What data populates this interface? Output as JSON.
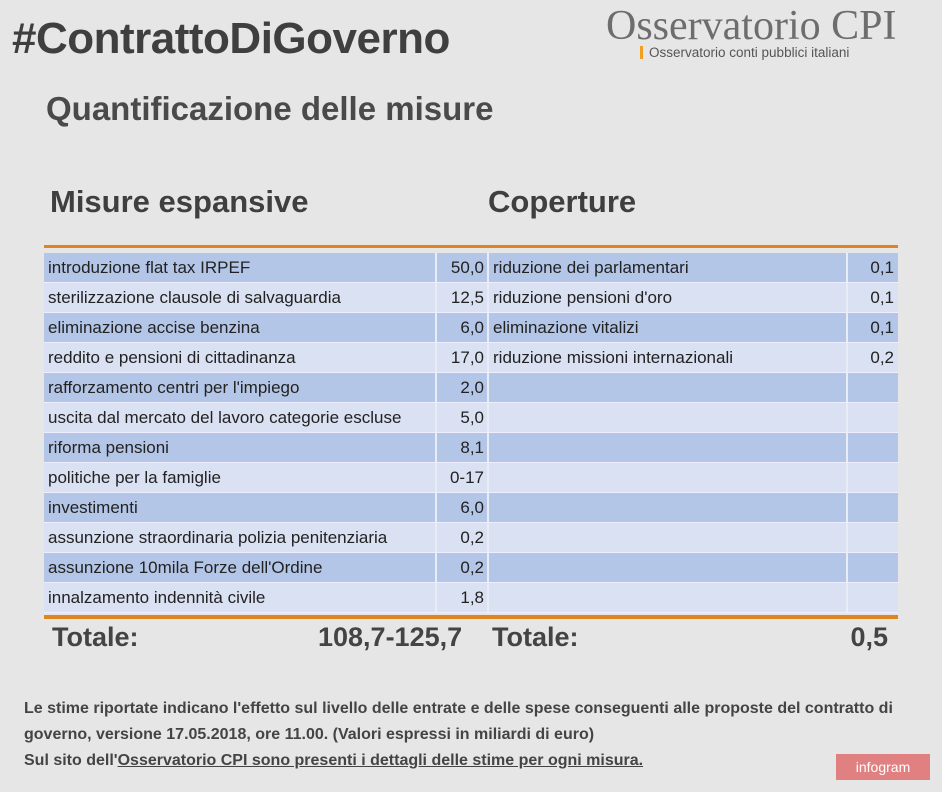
{
  "title": "#ContrattoDiGoverno",
  "subtitle": "Quantificazione delle misure",
  "logo": {
    "name": "Osservatorio CPI",
    "tagline": "Osservatorio conti pubblici italiani",
    "accent": "#f0a020"
  },
  "headers": {
    "left": "Misure espansive",
    "right": "Coperture"
  },
  "rows": [
    {
      "misura": "introduzione flat tax IRPEF",
      "valore": "50,0",
      "copertura": "riduzione dei parlamentari",
      "cvalore": "0,1"
    },
    {
      "misura": "sterilizzazione clausole di salvaguardia",
      "valore": "12,5",
      "copertura": "riduzione pensioni d'oro",
      "cvalore": "0,1"
    },
    {
      "misura": "eliminazione accise benzina",
      "valore": "6,0",
      "copertura": "eliminazione vitalizi",
      "cvalore": "0,1"
    },
    {
      "misura": "reddito e pensioni di cittadinanza",
      "valore": "17,0",
      "copertura": "riduzione missioni internazionali",
      "cvalore": "0,2"
    },
    {
      "misura": "rafforzamento centri per l'impiego",
      "valore": "2,0",
      "copertura": "",
      "cvalore": ""
    },
    {
      "misura": "uscita dal mercato del lavoro categorie escluse",
      "valore": "5,0",
      "copertura": "",
      "cvalore": ""
    },
    {
      "misura": "riforma pensioni",
      "valore": "8,1",
      "copertura": "",
      "cvalore": ""
    },
    {
      "misura": "politiche per la famiglie",
      "valore": "0-17",
      "copertura": "",
      "cvalore": ""
    },
    {
      "misura": "investimenti",
      "valore": "6,0",
      "copertura": "",
      "cvalore": ""
    },
    {
      "misura": "assunzione straordinaria polizia penitenziaria",
      "valore": "0,2",
      "copertura": "",
      "cvalore": ""
    },
    {
      "misura": "assunzione 10mila Forze dell'Ordine",
      "valore": "0,2",
      "copertura": "",
      "cvalore": ""
    },
    {
      "misura": "innalzamento indennità civile",
      "valore": "1,8",
      "copertura": "",
      "cvalore": ""
    }
  ],
  "totals": {
    "left_label": "Totale:",
    "left_value": "108,7-125,7",
    "right_label": "Totale:",
    "right_value": "0,5"
  },
  "notes": {
    "line1": "Le stime riportate indicano l'effetto sul livello delle entrate e delle spese conseguenti alle proposte del contratto di governo, versione 17.05.2018, ore 11.00. (Valori espressi in miliardi di euro)",
    "line2_prefix": "Sul sito dell'",
    "line2_link": "Osservatorio CPI sono presenti i dettagli delle stime per ogni misura."
  },
  "badge": "infogram",
  "colors": {
    "row_dark": "#b4c6e7",
    "row_light": "#d9e1f2",
    "rule": "#e08420",
    "badge": "#e08080"
  }
}
